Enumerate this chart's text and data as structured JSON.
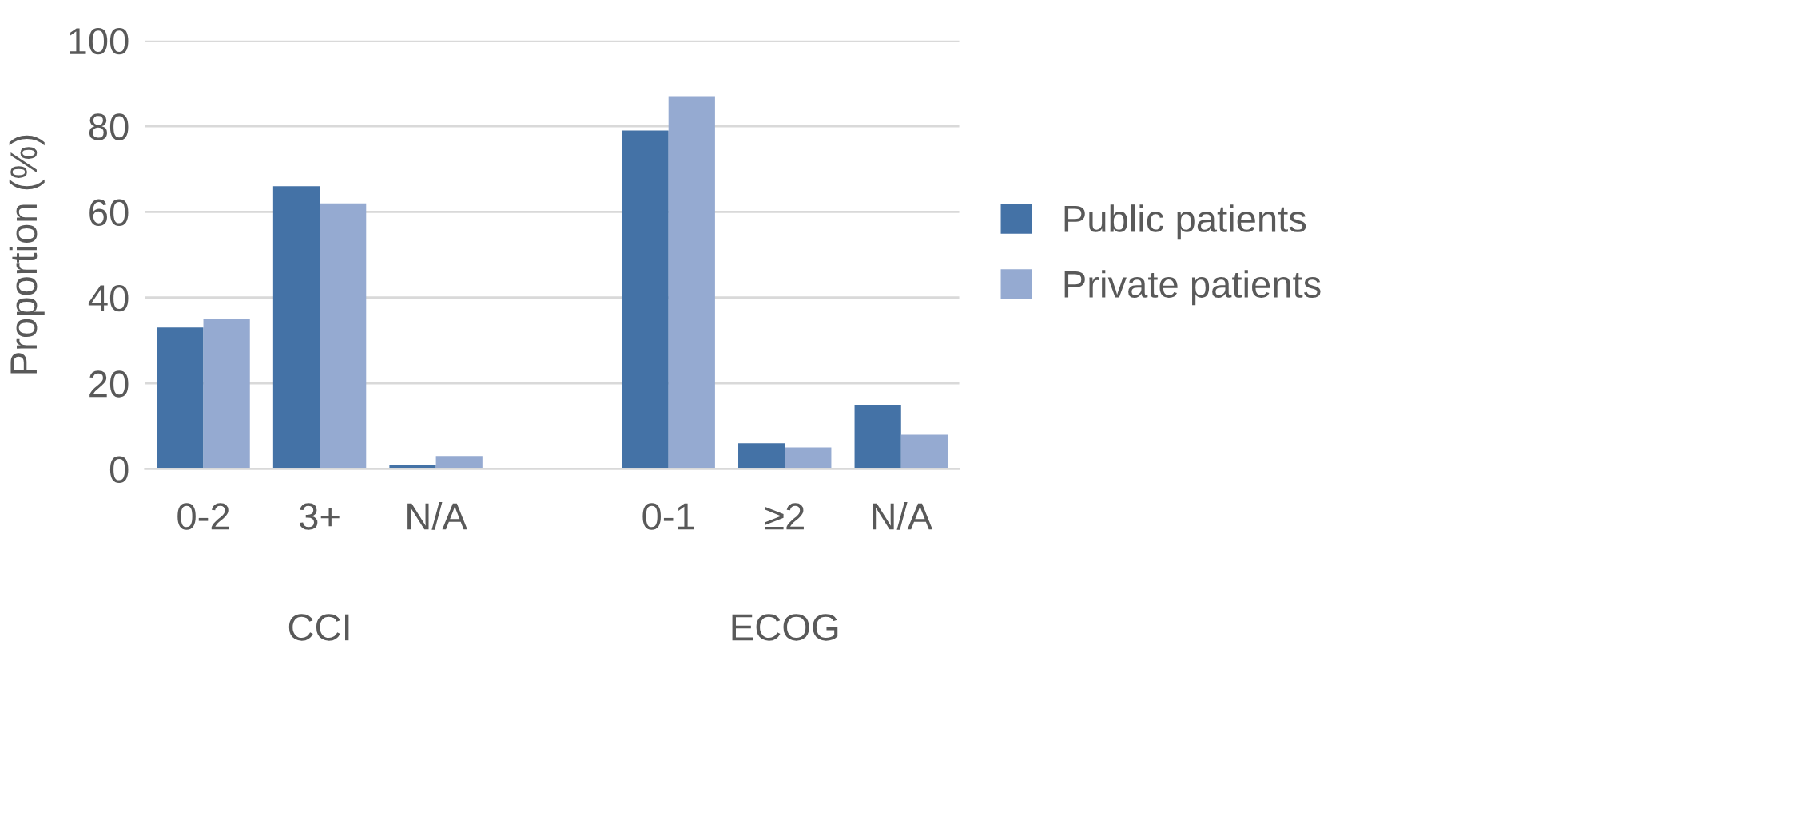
{
  "chart_data": {
    "type": "bar",
    "categories": [
      "0-2",
      "3+",
      "N/A",
      null,
      "0-1",
      "≥2",
      "N/A"
    ],
    "series": [
      {
        "name": "Public patients",
        "color": "#4472a6",
        "values": [
          33,
          66,
          1,
          null,
          79,
          6,
          15
        ]
      },
      {
        "name": "Private patients",
        "color": "#95aad1",
        "values": [
          35,
          62,
          3,
          null,
          87,
          5,
          8
        ]
      }
    ],
    "ylabel": "Proportion (%)",
    "ylim": [
      0,
      100
    ],
    "yticks": [
      0,
      20,
      40,
      60,
      80,
      100
    ],
    "annotations": [
      "CCI",
      "ECOG"
    ],
    "grid": "y",
    "legend": "right"
  }
}
